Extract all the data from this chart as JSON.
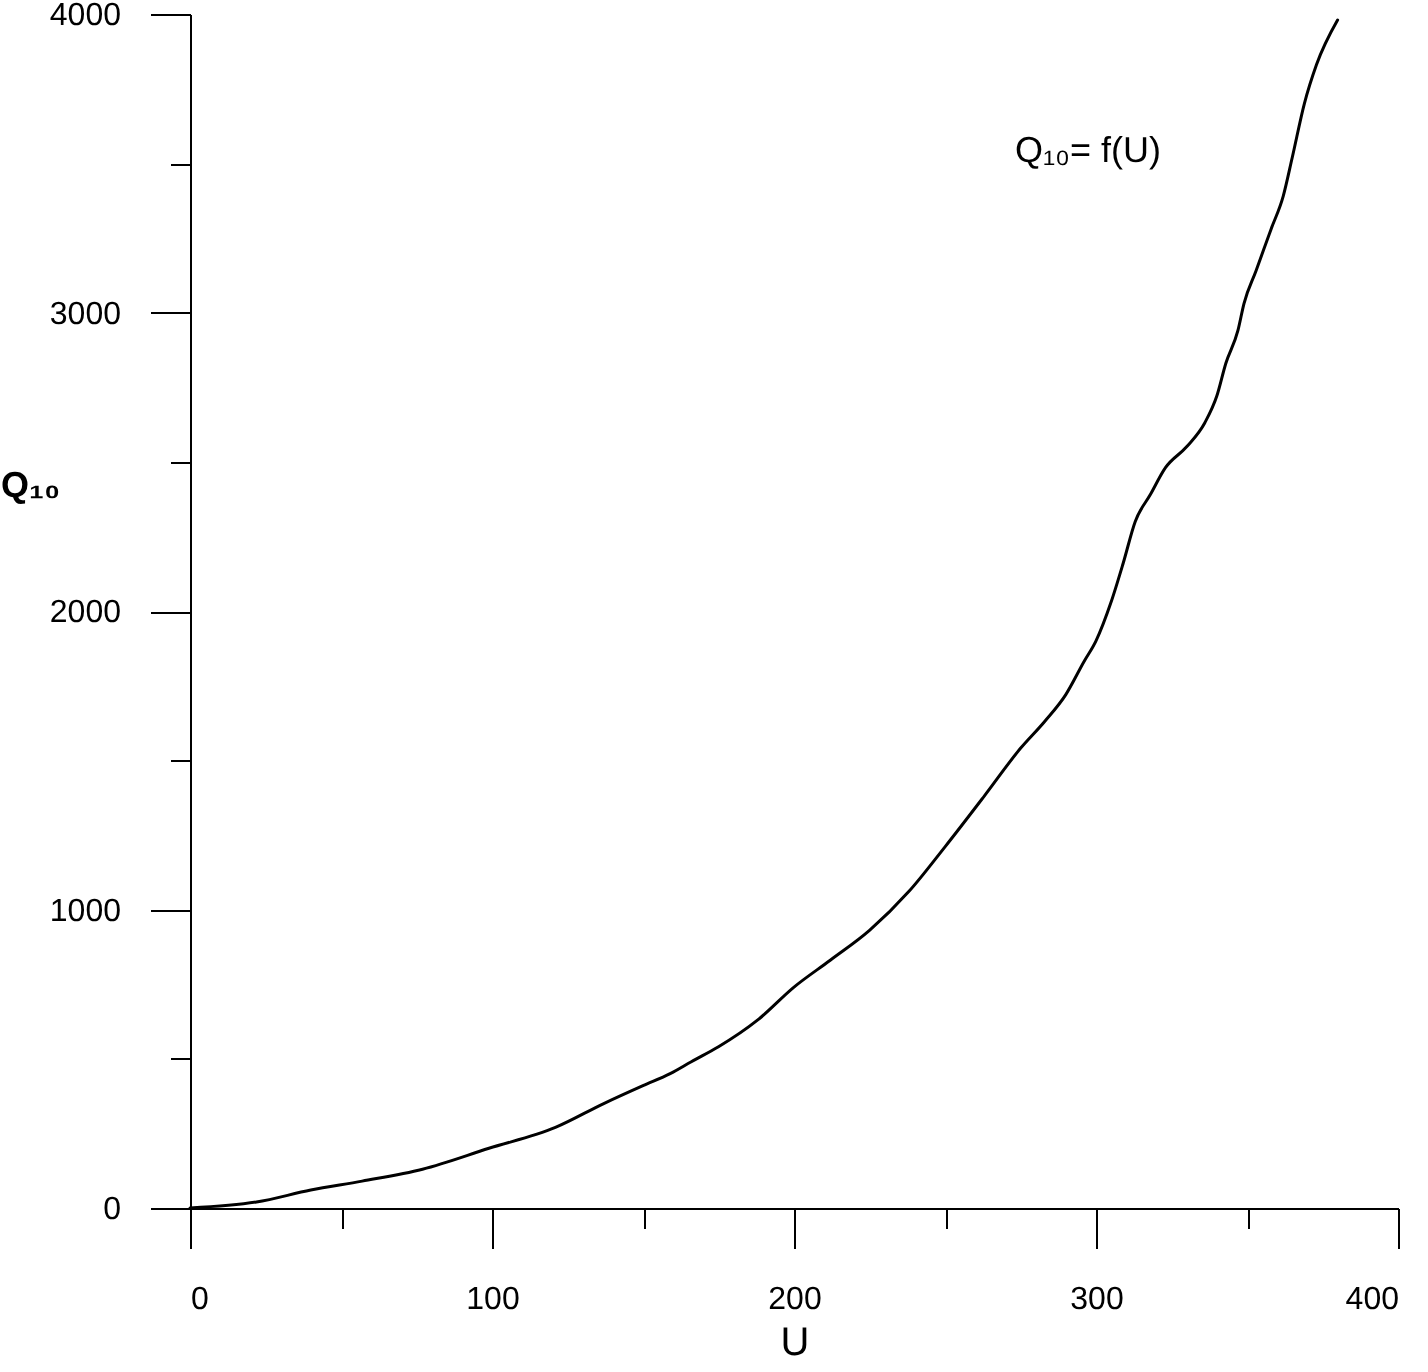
{
  "chart_data": {
    "type": "line",
    "xlabel": "U",
    "ylabel": "Q₁₀",
    "annotations": [
      "Q₁₀= f(U)"
    ],
    "x": [
      0,
      22,
      40,
      57,
      77,
      99,
      121,
      137,
      150,
      159,
      166,
      175,
      188,
      200,
      212,
      225,
      238,
      250,
      263,
      275,
      283,
      290,
      296,
      300,
      305,
      309,
      313,
      318,
      323,
      330,
      336,
      340,
      343,
      347,
      349,
      353,
      358,
      362,
      365,
      369,
      373,
      380
    ],
    "series": [
      {
        "color": "#000000",
        "values": [
          0,
          20,
          60,
          90,
          130,
          200,
          270,
          350,
          410,
          450,
          490,
          540,
          630,
          740,
          830,
          930,
          1060,
          1210,
          1380,
          1540,
          1630,
          1720,
          1830,
          1900,
          2030,
          2160,
          2300,
          2390,
          2480,
          2550,
          2630,
          2720,
          2830,
          2940,
          3030,
          3140,
          3280,
          3390,
          3520,
          3700,
          3830,
          3980
        ]
      }
    ],
    "xlim": [
      0,
      400
    ],
    "ylim": [
      0,
      4000
    ],
    "xticks": [
      0,
      {
        "value": 50,
        "label": null
      },
      100,
      {
        "value": 150,
        "label": null
      },
      200,
      {
        "value": 250,
        "label": null
      },
      300,
      {
        "value": 350,
        "label": null
      },
      400
    ],
    "yticks": [
      0,
      {
        "value": 500,
        "label": null
      },
      1000,
      {
        "value": 1500,
        "label": null
      },
      2000,
      {
        "value": 2500,
        "label": null
      },
      3000,
      {
        "value": 3500,
        "label": null
      },
      4000
    ]
  }
}
